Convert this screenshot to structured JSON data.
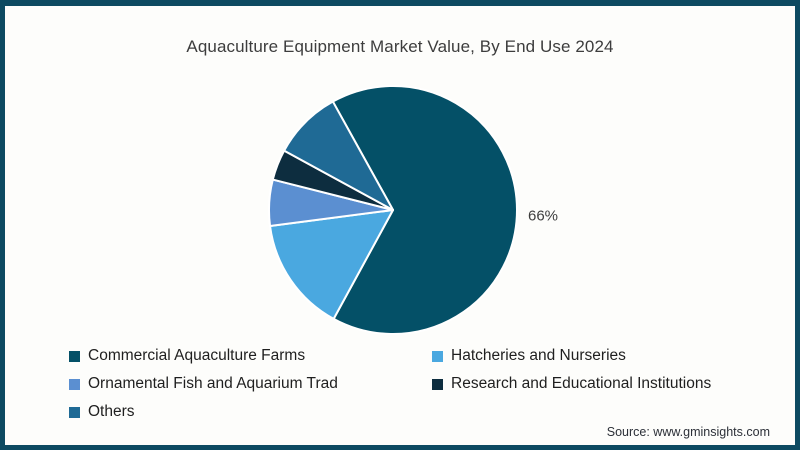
{
  "title": "Aquaculture Equipment Market Value, By End Use 2024",
  "source": "Source: www.gminsights.com",
  "frame": {
    "border_color": "#0d4a61",
    "background_color": "#fdfdfb"
  },
  "chart_data": {
    "type": "pie",
    "title": "Aquaculture Equipment Market Value, By End Use 2024",
    "legend_position": "bottom",
    "start_angle_deg": 119,
    "direction": "clockwise",
    "slice_separator_color": "#ffffff",
    "slices": [
      {
        "label": "Commercial Aquaculture Farms",
        "value": 66,
        "color": "#045067",
        "pct_label": "66%"
      },
      {
        "label": "Hatcheries and Nurseries",
        "value": 15,
        "color": "#4aa8e0",
        "pct_label": ""
      },
      {
        "label": "Ornamental Fish and Aquarium Trad",
        "value": 6,
        "color": "#5b8fd1",
        "pct_label": ""
      },
      {
        "label": "Research and Educational Institutions",
        "value": 4,
        "color": "#0d2d3f",
        "pct_label": ""
      },
      {
        "label": "Others",
        "value": 9,
        "color": "#1f6a95",
        "pct_label": ""
      }
    ]
  }
}
